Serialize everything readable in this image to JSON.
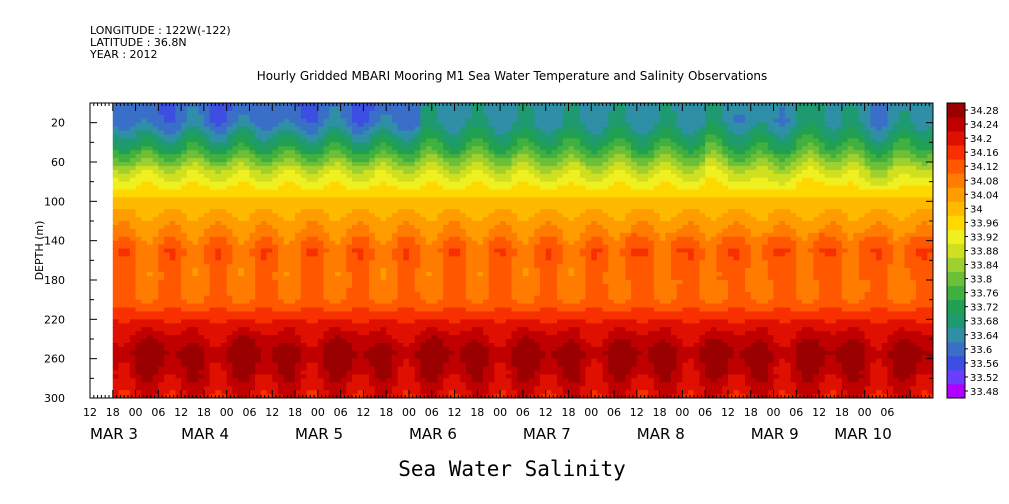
{
  "header": {
    "longitude": "LONGITUDE : 122W(-122)",
    "latitude": "LATITUDE : 36.8N",
    "year": "YEAR : 2012"
  },
  "chart_data": {
    "type": "heatmap",
    "title": "Hourly Gridded MBARI Mooring M1 Sea Water Temperature and Salinity Observations",
    "subtitle": "Sea Water Salinity",
    "xlabel": "",
    "ylabel": "DEPTH (m)",
    "x_range_hours": [
      -12,
      210
    ],
    "data_start_hour": -6,
    "y_range": [
      0,
      300
    ],
    "y_reversed": true,
    "y_ticks": [
      20,
      60,
      100,
      140,
      180,
      220,
      260,
      300
    ],
    "x_hour_tick_labels": [
      "12",
      "18",
      "00",
      "06",
      "12",
      "18",
      "00",
      "06",
      "12",
      "18",
      "00",
      "06",
      "12",
      "18",
      "00",
      "06",
      "12",
      "18",
      "00",
      "06",
      "12",
      "18",
      "00",
      "06",
      "12",
      "18",
      "00",
      "06",
      "12",
      "18",
      "00",
      "06",
      "12",
      "18",
      "00",
      "06"
    ],
    "x_date_labels": [
      {
        "label": "MAR  3",
        "hour": -12
      },
      {
        "label": "MAR  4",
        "hour": 12
      },
      {
        "label": "MAR  5",
        "hour": 42
      },
      {
        "label": "MAR  6",
        "hour": 72
      },
      {
        "label": "MAR  7",
        "hour": 102
      },
      {
        "label": "MAR  8",
        "hour": 132
      },
      {
        "label": "MAR  9",
        "hour": 162
      },
      {
        "label": "MAR 10",
        "hour": 184
      }
    ],
    "colorbar_levels": [
      "34.28",
      "34.24",
      "34.2",
      "34.16",
      "34.12",
      "34.08",
      "34.04",
      "34",
      "33.96",
      "33.92",
      "33.88",
      "33.84",
      "33.8",
      "33.76",
      "33.72",
      "33.68",
      "33.64",
      "33.6",
      "33.56",
      "33.52",
      "33.48"
    ],
    "colormap": [
      "#b000ff",
      "#6a3dff",
      "#3d4fe0",
      "#3a6fc8",
      "#2f8fa6",
      "#1f9a70",
      "#20a050",
      "#40b040",
      "#6cc038",
      "#9ed030",
      "#cfe020",
      "#f0f020",
      "#ffd800",
      "#ffba00",
      "#ff9c00",
      "#ff7c00",
      "#ff5800",
      "#f83000",
      "#e01000",
      "#c00000",
      "#9a0000"
    ],
    "depth_profile": [
      {
        "depth": 5,
        "value": 33.66
      },
      {
        "depth": 20,
        "value": 33.66
      },
      {
        "depth": 45,
        "value": 33.75
      },
      {
        "depth": 70,
        "value": 33.88
      },
      {
        "depth": 100,
        "value": 33.99
      },
      {
        "depth": 125,
        "value": 34.04
      },
      {
        "depth": 150,
        "value": 34.1
      },
      {
        "depth": 175,
        "value": 34.08
      },
      {
        "depth": 200,
        "value": 34.09
      },
      {
        "depth": 225,
        "value": 34.18
      },
      {
        "depth": 255,
        "value": 34.26
      },
      {
        "depth": 280,
        "value": 34.22
      },
      {
        "depth": 300,
        "value": 34.18
      }
    ]
  }
}
